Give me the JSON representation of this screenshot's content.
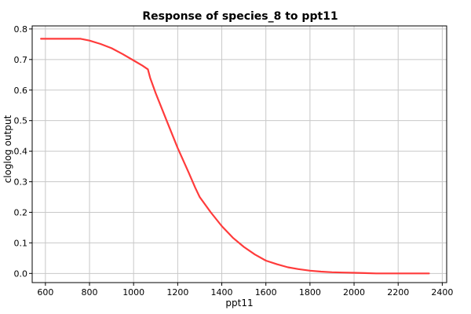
{
  "chart_data": {
    "type": "line",
    "title": "Response of species_8 to ppt11",
    "xlabel": "ppt11",
    "ylabel": "cloglog output",
    "xlim": [
      540,
      2420
    ],
    "ylim": [
      -0.03,
      0.81
    ],
    "x_ticks": [
      600,
      800,
      1000,
      1200,
      1400,
      1600,
      1800,
      2000,
      2200,
      2400
    ],
    "y_ticks": [
      0.0,
      0.1,
      0.2,
      0.3,
      0.4,
      0.5,
      0.6,
      0.7,
      0.8
    ],
    "grid": true,
    "colors": {
      "line": "#ff3b3b",
      "grid": "#c8c8c8",
      "axis": "#000000"
    },
    "series": [
      {
        "x": [
          580,
          760,
          800,
          850,
          900,
          950,
          1000,
          1040,
          1065,
          1075,
          1100,
          1150,
          1200,
          1250,
          1280,
          1300,
          1350,
          1400,
          1450,
          1500,
          1550,
          1600,
          1650,
          1700,
          1750,
          1800,
          1850,
          1900,
          1950,
          2000,
          2050,
          2100,
          2200,
          2340
        ],
        "y": [
          0.768,
          0.768,
          0.762,
          0.751,
          0.737,
          0.718,
          0.697,
          0.68,
          0.668,
          0.64,
          0.59,
          0.5,
          0.41,
          0.33,
          0.28,
          0.25,
          0.2,
          0.155,
          0.117,
          0.087,
          0.062,
          0.042,
          0.03,
          0.02,
          0.014,
          0.009,
          0.006,
          0.004,
          0.003,
          0.002,
          0.001,
          0.0,
          0.0,
          0.0
        ]
      }
    ]
  }
}
